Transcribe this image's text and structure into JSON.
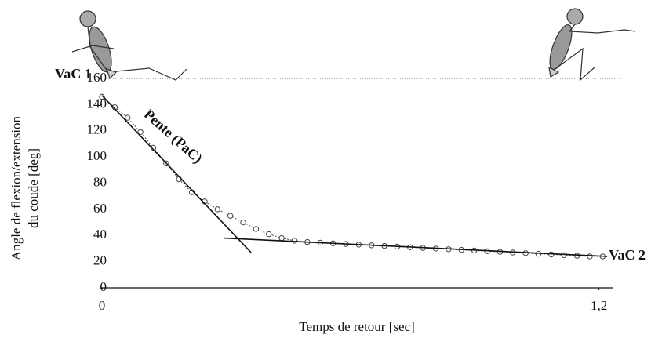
{
  "chart_data": {
    "type": "line",
    "x_label": "Temps de retour [sec]",
    "y_label": [
      "Angle de flexion/extension",
      "du coude [deg]"
    ],
    "x": [
      0,
      0.031,
      0.062,
      0.093,
      0.124,
      0.155,
      0.186,
      0.217,
      0.248,
      0.279,
      0.31,
      0.341,
      0.372,
      0.403,
      0.434,
      0.465,
      0.496,
      0.527,
      0.558,
      0.589,
      0.62,
      0.651,
      0.682,
      0.713,
      0.744,
      0.775,
      0.806,
      0.837,
      0.868,
      0.899,
      0.93,
      0.961,
      0.992,
      1.023,
      1.054,
      1.085,
      1.116,
      1.147,
      1.178,
      1.209
    ],
    "series": [
      {
        "color": "#444444",
        "values": [
          146,
          138,
          130,
          119,
          107,
          95,
          83,
          73,
          66,
          60,
          55,
          50,
          45,
          41,
          38,
          36,
          35,
          34.5,
          34,
          33.5,
          33,
          32.5,
          32,
          31.5,
          31,
          30.5,
          30,
          29.5,
          29,
          28.5,
          28,
          27.5,
          27,
          26.5,
          26,
          25.5,
          25,
          24.5,
          24,
          24
        ]
      }
    ],
    "fit_lines": [
      {
        "x": [
          0,
          0.36
        ],
        "values": [
          147,
          27
        ]
      },
      {
        "x": [
          0.294,
          1.22
        ],
        "values": [
          38,
          24
        ]
      }
    ],
    "annotations": [
      {
        "text": "VaC 1",
        "x": 0,
        "y": 147
      },
      {
        "text": "Pente (PaC)",
        "x": 0.17,
        "y": 115
      },
      {
        "text": "VaC 2",
        "x": 1.22,
        "y": 24
      }
    ],
    "xlim": [
      0,
      1.25
    ],
    "ylim": [
      0,
      160
    ],
    "xticks": [
      0,
      {
        "value": 1.2,
        "label": "1,2"
      }
    ],
    "yticks": [
      0,
      20,
      40,
      60,
      80,
      100,
      120,
      140,
      160
    ]
  }
}
